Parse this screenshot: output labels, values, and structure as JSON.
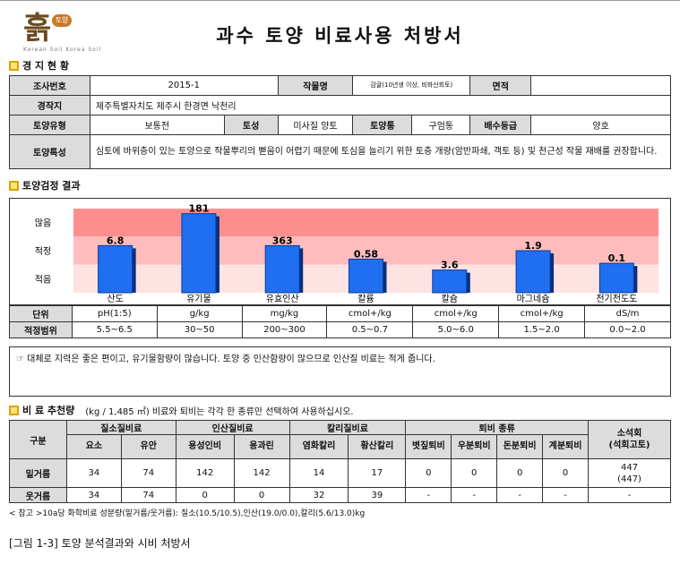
{
  "title": "과수 토양 비료사용 처방서",
  "logo": {
    "glyph": "흙",
    "badge": "토양",
    "sub": "Korean Soil Korea Soil"
  },
  "section1": {
    "heading": "경 지 현 황"
  },
  "info": {
    "survey_no_label": "조사번호",
    "survey_no": "2015-1",
    "crop_label": "작물명",
    "crop": "감귤(10년생 이상, 비화산회토)",
    "area_label": "면적",
    "area": "",
    "location_label": "경작지",
    "location": "제주특별자치도 제주시 한경면 낙천리",
    "soil_type_label": "토양유형",
    "soil_type": "보통전",
    "texture_label": "토성",
    "texture": "미사질 양토",
    "soil_group_label": "토양통",
    "soil_group": "구엄통",
    "drainage_label": "배수등급",
    "drainage": "양호",
    "soil_char_label": "토양특성",
    "soil_char": "심토에 바위층이 있는 토양으로 작물뿌리의 뻗음이 어렵기 때문에 토심을 늘리기 위한 토층 개량(암반파쇄, 객토 등) 및 천근성 작물 재배를 권장합니다."
  },
  "section2": {
    "heading": "토양검정 결과"
  },
  "chart_data": {
    "type": "bar",
    "zones": [
      "많음",
      "적정",
      "적음"
    ],
    "categories": [
      "산도",
      "유기물",
      "유효인산",
      "칼륨",
      "칼슘",
      "마그네슘",
      "전기전도도"
    ],
    "values": [
      "6.8",
      "181",
      "363",
      "0.58",
      "3.6",
      "1.9",
      "0.1"
    ],
    "levels": [
      0.56,
      0.94,
      0.56,
      0.4,
      0.27,
      0.5,
      0.35
    ],
    "units_label": "단위",
    "units": [
      "pH(1:5)",
      "g/kg",
      "mg/kg",
      "cmol+/kg",
      "cmol+/kg",
      "cmol+/kg",
      "dS/m"
    ],
    "range_label": "적정범위",
    "ranges": [
      "5.5~6.5",
      "30~50",
      "200~300",
      "0.5~0.7",
      "5.0~6.0",
      "1.5~2.0",
      "0.0~2.0"
    ],
    "colors": {
      "bar": "#1f6ff0",
      "high": "#ff8f8f",
      "mid": "#ffbcbc",
      "low": "#ffe3e3"
    }
  },
  "comment": "☞ 대체로 지력은 좋은 편이고, 유기물함량이 많습니다. 토양 중 인산함량이 많으므로 인산질 비료는 적게 줍니다.",
  "section3": {
    "heading": "비 료 추천량",
    "note": "(kg / 1,485 ㎡) 비료와 퇴비는 각각 한 종류만 선택하여 사용하십시오."
  },
  "fert": {
    "col_type": "구분",
    "grp_n": "질소질비료",
    "grp_p": "인산질비료",
    "grp_k": "칼리질비료",
    "grp_c": "퇴비 종류",
    "grp_l": "소석회\n(석회고토)",
    "sub": [
      "요소",
      "유안",
      "용성인비",
      "용과린",
      "염화칼리",
      "황산칼리",
      "볏짚퇴비",
      "우분퇴비",
      "돈분퇴비",
      "계분퇴비"
    ],
    "rows": [
      {
        "name": "밑거름",
        "cells": [
          "34",
          "74",
          "142",
          "142",
          "14",
          "17",
          "0",
          "0",
          "0",
          "0",
          "447\n(447)"
        ]
      },
      {
        "name": "웃거름",
        "cells": [
          "34",
          "74",
          "0",
          "0",
          "32",
          "39",
          "-",
          "-",
          "-",
          "-",
          "-"
        ]
      }
    ]
  },
  "footnote": "< 참고 >10a당 화학비료 성분량(밑거름/웃거름): 질소(10.5/10.5),인산(19.0/0.0),칼리(5.6/13.0)kg",
  "caption": "[그림 1-3] 토양 분석결과와 시비 처방서"
}
